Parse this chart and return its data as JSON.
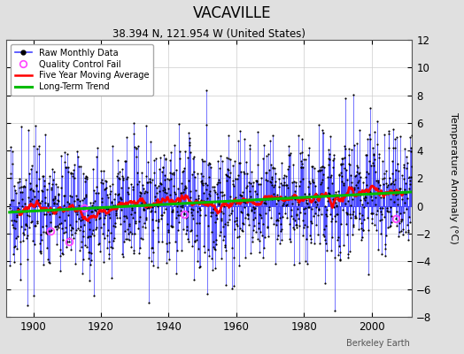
{
  "title": "VACAVILLE",
  "subtitle": "38.394 N, 121.954 W (United States)",
  "ylabel": "Temperature Anomaly (°C)",
  "credit": "Berkeley Earth",
  "year_start": 1893,
  "year_end": 2011,
  "ylim": [
    -8,
    12
  ],
  "yticks": [
    -8,
    -6,
    -4,
    -2,
    0,
    2,
    4,
    6,
    8,
    10,
    12
  ],
  "xticks": [
    1900,
    1920,
    1940,
    1960,
    1980,
    2000
  ],
  "raw_color": "#4444ff",
  "marker_color": "#000000",
  "qc_color": "#ff44ff",
  "moving_avg_color": "#ff0000",
  "trend_color": "#00bb00",
  "background_color": "#e0e0e0",
  "plot_background": "#ffffff",
  "title_fontsize": 12,
  "subtitle_fontsize": 8.5,
  "seed": 17,
  "noise_std": 2.2,
  "trend_slope": 0.012,
  "trend_intercept": -0.5,
  "qc_indices": [
    145,
    210,
    265,
    620,
    1370
  ]
}
